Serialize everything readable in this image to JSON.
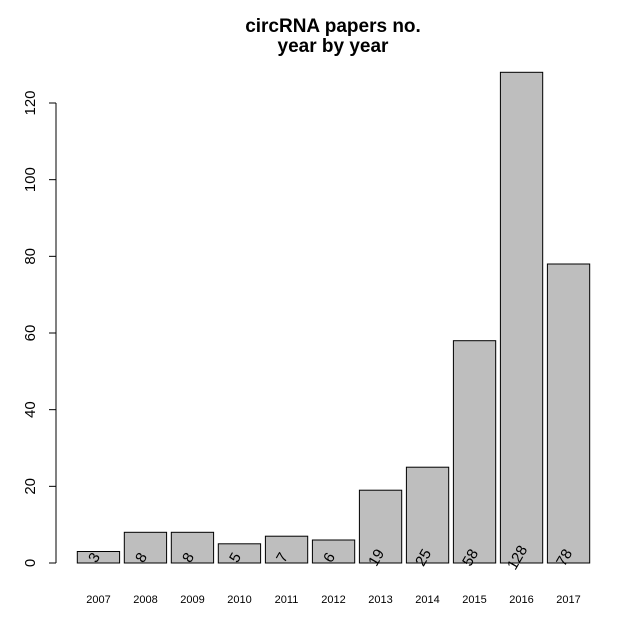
{
  "chart_data": {
    "type": "bar",
    "title": [
      "circRNA papers no.",
      "year by year"
    ],
    "categories": [
      "2007",
      "2008",
      "2009",
      "2010",
      "2011",
      "2012",
      "2013",
      "2014",
      "2015",
      "2016",
      "2017"
    ],
    "values": [
      3,
      8,
      8,
      5,
      7,
      6,
      19,
      25,
      58,
      128,
      78
    ],
    "data_labels": [
      "3",
      "8",
      "8",
      "5",
      "7",
      "6",
      "19",
      "25",
      "58",
      "128",
      "78"
    ],
    "y_ticks": [
      0,
      20,
      40,
      60,
      80,
      100,
      120
    ],
    "ylim": [
      0,
      128
    ],
    "xlabel": "",
    "ylabel": "",
    "bar_color": "#bebebe",
    "grid": false
  }
}
